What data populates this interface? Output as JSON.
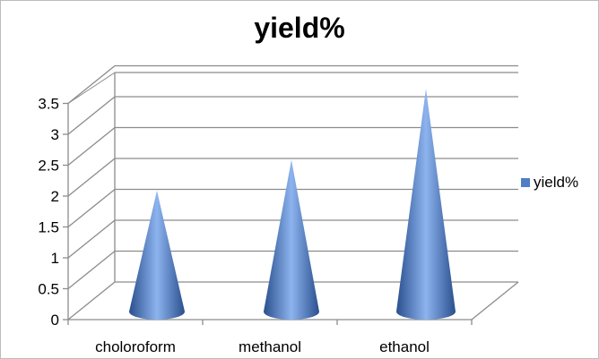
{
  "chart_data": {
    "type": "bar",
    "subtype": "3d-cone",
    "title": "yield%",
    "xlabel": "",
    "ylabel": "",
    "categories": [
      "choloroform",
      "methanol",
      "ethanol"
    ],
    "series": [
      {
        "name": "yield%",
        "values": [
          2.0,
          2.5,
          3.65
        ]
      }
    ],
    "ylim": [
      0,
      3.5
    ],
    "y_ticks": [
      "0",
      "0.5",
      "1",
      "1.5",
      "2",
      "2.5",
      "3",
      "3.5"
    ],
    "grid": true,
    "legend": "right",
    "colors": {
      "cone_dark": "#2a4f8e",
      "cone_light": "#8db4ef",
      "grid": "#8c8c8c"
    }
  }
}
